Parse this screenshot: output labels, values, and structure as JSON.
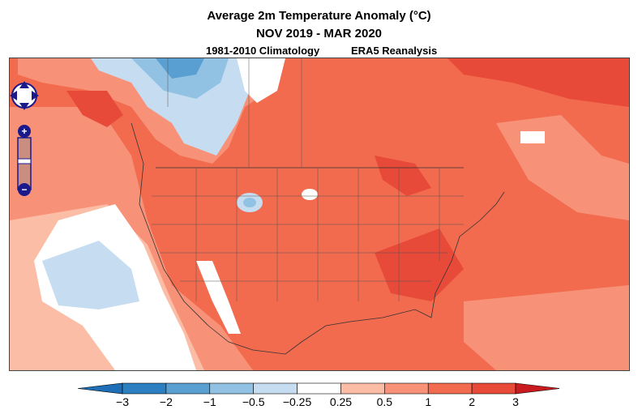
{
  "header": {
    "title": "Average 2m Temperature Anomaly (°C)",
    "period": "NOV 2019 - MAR 2020",
    "climatology": "1981-2010 Climatology",
    "dataset": "ERA5 Reanalysis"
  },
  "map_controls": {
    "pan": "pan-control",
    "zoom_in": "+",
    "zoom_out": "−"
  },
  "legend": {
    "ticks": [
      "−3",
      "−2",
      "−1",
      "−0.5",
      "−0.25",
      "0.25",
      "0.5",
      "1",
      "2",
      "3"
    ],
    "colors": [
      "#2c7fc0",
      "#5a9fd2",
      "#92c2e3",
      "#c6dcf0",
      "#ffffff",
      "#fbbda6",
      "#f79279",
      "#f26b4e",
      "#e84a3a",
      "#d9272a"
    ],
    "under_color": "#1f6fb8",
    "over_color": "#c91a1f"
  }
}
